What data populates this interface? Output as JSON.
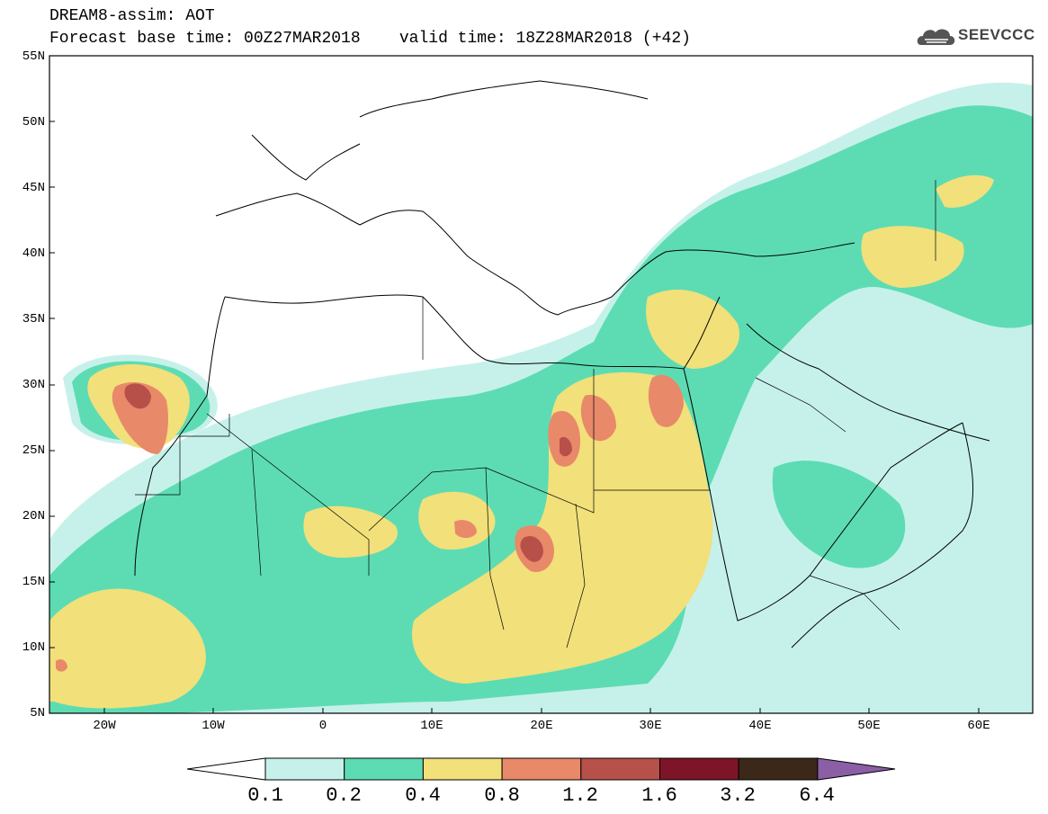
{
  "header": {
    "title": "DREAM8-assim: AOT",
    "subtitle": "Forecast base time: 00Z27MAR2018    valid time: 18Z28MAR2018 (+42)",
    "logo_text": "SEEVCCC"
  },
  "map": {
    "region": "North Africa, Mediterranean, Middle East",
    "lon_range": [
      -25,
      65
    ],
    "lat_range": [
      5,
      55
    ],
    "lat_labels": [
      "55N",
      "50N",
      "45N",
      "40N",
      "35N",
      "30N",
      "25N",
      "20N",
      "15N",
      "10N",
      "5N"
    ],
    "lon_labels": [
      "20W",
      "10W",
      "0",
      "10E",
      "20E",
      "30E",
      "40E",
      "50E",
      "60E"
    ]
  },
  "colorbar": {
    "labels": [
      "0.1",
      "0.2",
      "0.4",
      "0.8",
      "1.2",
      "1.6",
      "3.2",
      "6.4"
    ],
    "colors": [
      "#c6f1ea",
      "#5ddcb4",
      "#f2e07a",
      "#e8896a",
      "#b8504a",
      "#7e1428",
      "#3c2818",
      "#8a5fa6"
    ]
  }
}
